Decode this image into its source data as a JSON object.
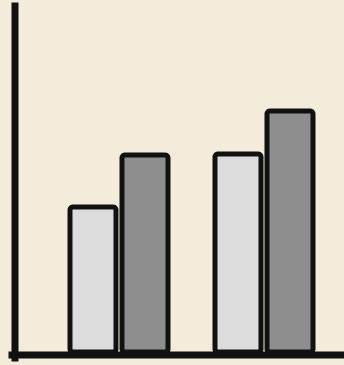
{
  "colors": {
    "background": "#f3ecdb",
    "series_light": "#dcdcdc",
    "series_dark": "#8e8e8e",
    "outline": "#111111"
  },
  "chart_data": {
    "type": "bar",
    "title": "",
    "xlabel": "",
    "ylabel": "",
    "categories": [
      "",
      ""
    ],
    "series": [
      {
        "values": [
          145,
          198
        ]
      },
      {
        "values": [
          197,
          241
        ]
      }
    ],
    "ylim": [
      0,
      350
    ],
    "grid": false,
    "legend": "none"
  }
}
